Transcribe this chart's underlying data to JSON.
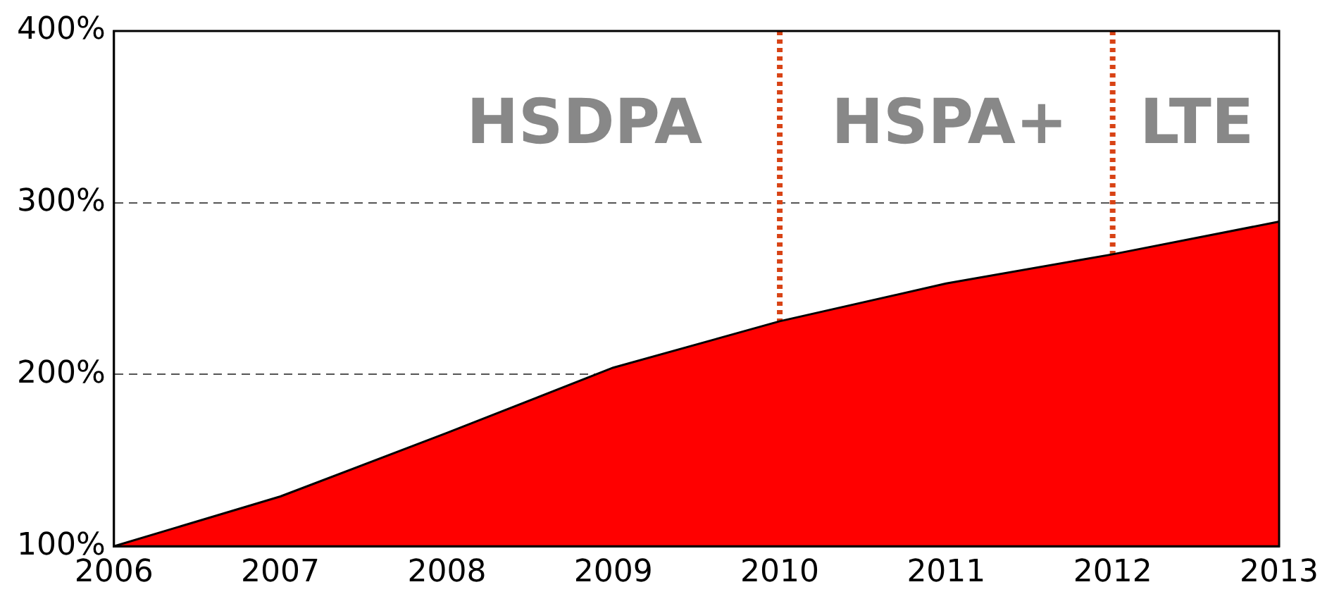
{
  "chart_data": {
    "type": "area",
    "x": [
      2006,
      2007,
      2008,
      2009,
      2010,
      2011,
      2012,
      2013
    ],
    "series": [
      {
        "color": "#ff0000",
        "values": [
          100,
          129,
          166,
          204,
          231,
          253,
          270,
          289
        ]
      }
    ],
    "xlim": [
      2006,
      2013
    ],
    "xticks": [
      2006,
      2007,
      2008,
      2009,
      2010,
      2011,
      2012,
      2013
    ],
    "ylim": [
      100,
      400
    ],
    "yticks": [
      {
        "value": 100,
        "label": "100%"
      },
      {
        "value": 200,
        "label": "200%"
      },
      {
        "value": 300,
        "label": "300%"
      },
      {
        "value": 400,
        "label": "400%"
      }
    ],
    "grid": "y",
    "legend": false,
    "marker": "none",
    "ref_lines": [
      {
        "axis": "x",
        "value": 2010,
        "color": "#d84315",
        "line_style": "dotted"
      },
      {
        "axis": "x",
        "value": 2012,
        "color": "#d84315",
        "line_style": "dotted"
      }
    ],
    "annotations": [
      "HSDPA",
      "HSPA+",
      "LTE"
    ]
  }
}
